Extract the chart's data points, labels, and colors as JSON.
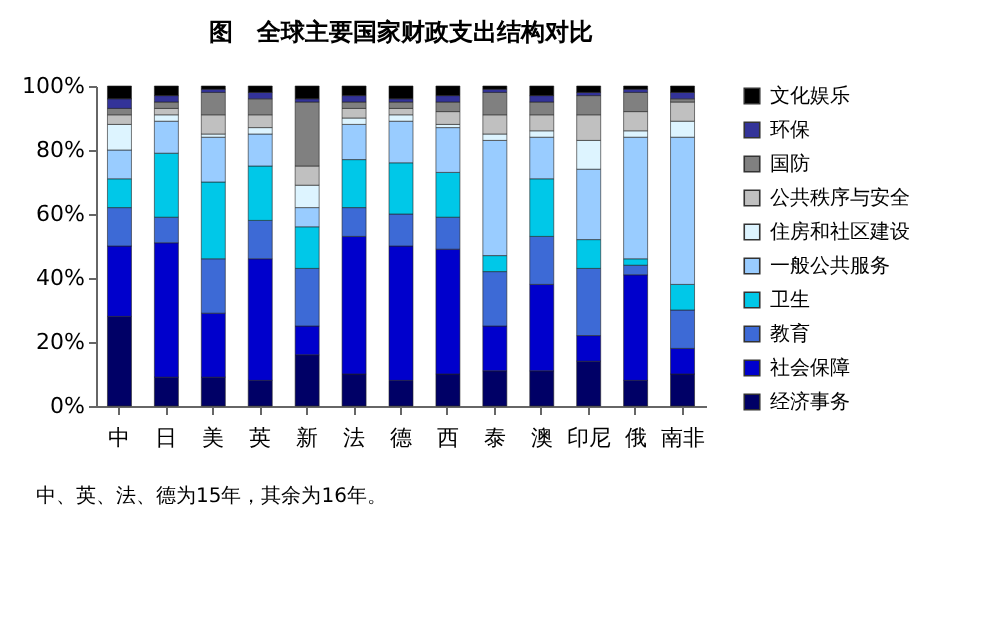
{
  "chart_data": {
    "type": "bar",
    "stacked": true,
    "title": "图　全球主要国家财政支出结构对比",
    "categories": [
      "中",
      "日",
      "美",
      "英",
      "新",
      "法",
      "德",
      "西",
      "泰",
      "澳",
      "印尼",
      "俄",
      "南非"
    ],
    "series": [
      {
        "name": "经济事务",
        "color": "#000066",
        "values": [
          28,
          9,
          9,
          8,
          16,
          10,
          8,
          10,
          11,
          11,
          14,
          8,
          10
        ]
      },
      {
        "name": "社会保障",
        "color": "#0000cc",
        "values": [
          22,
          42,
          20,
          38,
          9,
          43,
          42,
          39,
          14,
          27,
          8,
          33,
          8
        ]
      },
      {
        "name": "教育",
        "color": "#3d6ad6",
        "values": [
          12,
          8,
          17,
          12,
          18,
          9,
          10,
          10,
          17,
          15,
          21,
          3,
          12
        ]
      },
      {
        "name": "卫生",
        "color": "#00c8e8",
        "values": [
          9,
          20,
          24,
          17,
          13,
          15,
          16,
          14,
          5,
          18,
          9,
          2,
          8
        ]
      },
      {
        "name": "一般公共服务",
        "color": "#99ccff",
        "values": [
          9,
          10,
          14,
          10,
          6,
          11,
          13,
          14,
          36,
          13,
          22,
          38,
          46
        ]
      },
      {
        "name": "住房和社区建设",
        "color": "#ddf4ff",
        "values": [
          8,
          2,
          1,
          2,
          7,
          2,
          2,
          1,
          2,
          2,
          9,
          2,
          5
        ]
      },
      {
        "name": "公共秩序与安全",
        "color": "#c0c0c0",
        "values": [
          3,
          2,
          6,
          4,
          6,
          3,
          2,
          4,
          6,
          5,
          8,
          6,
          6
        ]
      },
      {
        "name": "国防",
        "color": "#808080",
        "values": [
          2,
          2,
          7,
          5,
          20,
          2,
          2,
          3,
          7,
          4,
          6,
          6,
          1
        ]
      },
      {
        "name": "环保",
        "color": "#333399",
        "values": [
          3,
          2,
          1,
          2,
          1,
          2,
          1,
          2,
          1,
          2,
          1,
          1,
          2
        ]
      },
      {
        "name": "文化娱乐",
        "color": "#000000",
        "values": [
          4,
          3,
          1,
          2,
          4,
          3,
          4,
          3,
          1,
          3,
          2,
          1,
          2
        ]
      }
    ],
    "ylim": [
      0,
      100
    ],
    "yticks": [
      {
        "value": 0,
        "label": "0%"
      },
      {
        "value": 20,
        "label": "20%"
      },
      {
        "value": 40,
        "label": "40%"
      },
      {
        "value": 60,
        "label": "60%"
      },
      {
        "value": 80,
        "label": "80%"
      },
      {
        "value": 100,
        "label": "100%"
      }
    ],
    "grid": false,
    "legend": "right",
    "annotations": [
      "中、英、法、德为15年，其余为16年。"
    ]
  }
}
